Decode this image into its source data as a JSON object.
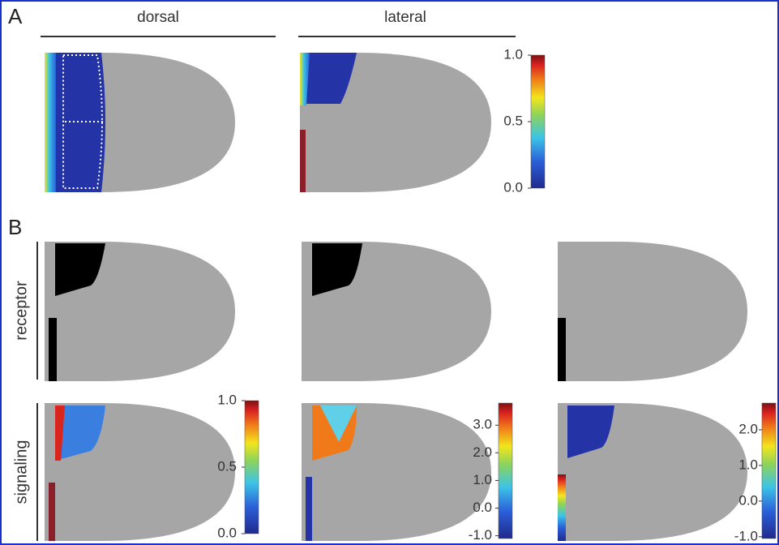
{
  "panels": [
    {
      "label": "A",
      "columns": [
        "dorsal",
        "lateral"
      ],
      "colorbars": [
        {
          "clim": [
            0,
            1
          ],
          "ticks": [
            {
              "value": 0,
              "label": "0.0"
            },
            {
              "value": 0.5,
              "label": "0.5"
            },
            {
              "value": 1,
              "label": "1.0"
            }
          ]
        }
      ]
    },
    {
      "label": "B",
      "rows": [
        "receptor",
        "signaling"
      ],
      "colorbars": [
        {
          "clim": [
            0,
            1
          ],
          "ticks": [
            {
              "value": 0,
              "label": "0.0"
            },
            {
              "value": 0.5,
              "label": "0.5"
            },
            {
              "value": 1,
              "label": "1.0"
            }
          ]
        },
        {
          "clim": [
            -1.1,
            3.8
          ],
          "ticks": [
            {
              "value": -1,
              "label": "-1.0"
            },
            {
              "value": 0,
              "label": "0.0"
            },
            {
              "value": 1,
              "label": "1.0"
            },
            {
              "value": 2,
              "label": "2.0"
            },
            {
              "value": 3,
              "label": "3.0"
            }
          ]
        },
        {
          "clim": [
            -1.05,
            2.75
          ],
          "ticks": [
            {
              "value": -1,
              "label": "-1.0"
            },
            {
              "value": 0,
              "label": "0.0"
            },
            {
              "value": 1,
              "label": "1.0"
            },
            {
              "value": 2,
              "label": "2.0"
            }
          ]
        }
      ]
    }
  ]
}
